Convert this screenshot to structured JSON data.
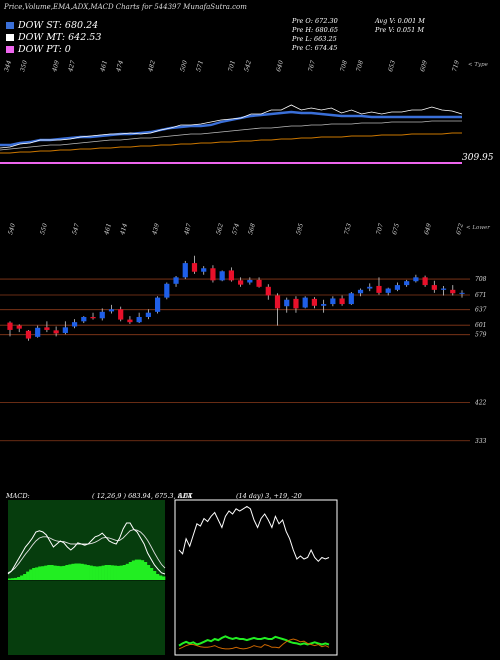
{
  "title": "Price,Volume,EMA,ADX,MACD Charts for 544397 MunafaSutra.com",
  "legend": [
    {
      "label": "DOW ST: 680.24",
      "color": "#3a6fd8"
    },
    {
      "label": "DOW MT: 642.53",
      "color": "#ffffff"
    },
    {
      "label": "DOW PT: 0",
      "color": "#ee66ee"
    }
  ],
  "stats": {
    "prev_open": "Pre   O: 672.30",
    "prev_high": "Pre   H: 680.65",
    "prev_low": "Pre   L: 663.25",
    "prev_close": "Pre   C: 674.45",
    "avg_volume": "Avg V: 0.001 M",
    "prev_volume": "Pre   V: 0.051 M"
  },
  "notes": {
    "top_right_1": "< Type",
    "top_right_2": "< Lower"
  },
  "colors": {
    "up": "#1f5fe8",
    "down": "#e8102a",
    "ema_long": "#cc7700",
    "pt_line": "#ee66ee"
  },
  "chart_data": [
    {
      "type": "line",
      "title": "Volume / EMA panel",
      "top_axis_labels": [
        "344",
        "350",
        "",
        "409",
        "427",
        "",
        "461",
        "474",
        "",
        "482",
        "",
        "500",
        "571",
        "",
        "701",
        "542",
        "",
        "640",
        "",
        "767",
        "",
        "708",
        "708",
        "",
        "653",
        "",
        "609",
        "",
        "719"
      ],
      "right_label": "309.95",
      "series": [
        {
          "values": [
            0.55,
            0.55,
            0.57,
            0.58,
            0.6,
            0.6,
            0.61,
            0.62,
            0.63,
            0.63,
            0.64,
            0.65,
            0.66,
            0.66,
            0.67,
            0.68,
            0.7,
            0.72,
            0.73,
            0.74,
            0.74,
            0.75,
            0.78,
            0.8,
            0.82,
            0.84,
            0.85,
            0.86,
            0.87,
            0.88,
            0.87,
            0.87,
            0.86,
            0.85,
            0.84,
            0.84,
            0.84,
            0.83,
            0.83,
            0.83,
            0.83,
            0.83,
            0.83,
            0.83,
            0.83,
            0.83,
            0.83
          ]
        },
        {
          "values": [
            0.52,
            0.53,
            0.56,
            0.57,
            0.6,
            0.6,
            0.6,
            0.61,
            0.63,
            0.64,
            0.65,
            0.66,
            0.66,
            0.67,
            0.66,
            0.67,
            0.7,
            0.72,
            0.75,
            0.75,
            0.76,
            0.78,
            0.8,
            0.81,
            0.82,
            0.86,
            0.86,
            0.9,
            0.9,
            0.95,
            0.9,
            0.92,
            0.9,
            0.92,
            0.87,
            0.9,
            0.86,
            0.88,
            0.86,
            0.88,
            0.88,
            0.9,
            0.9,
            0.93,
            0.9,
            0.89,
            0.86
          ]
        },
        {
          "values": [
            0.5,
            0.51,
            0.52,
            0.53,
            0.54,
            0.55,
            0.55,
            0.56,
            0.57,
            0.58,
            0.59,
            0.6,
            0.6,
            0.61,
            0.62,
            0.62,
            0.63,
            0.64,
            0.65,
            0.66,
            0.66,
            0.67,
            0.68,
            0.69,
            0.7,
            0.71,
            0.72,
            0.72,
            0.73,
            0.74,
            0.74,
            0.75,
            0.75,
            0.76,
            0.76,
            0.76,
            0.77,
            0.77,
            0.77,
            0.78,
            0.78,
            0.78,
            0.78,
            0.79,
            0.79,
            0.79,
            0.79
          ]
        },
        {
          "values": [
            0.47,
            0.47,
            0.48,
            0.48,
            0.49,
            0.49,
            0.5,
            0.5,
            0.51,
            0.51,
            0.52,
            0.52,
            0.53,
            0.53,
            0.54,
            0.54,
            0.55,
            0.55,
            0.56,
            0.56,
            0.57,
            0.57,
            0.58,
            0.58,
            0.59,
            0.59,
            0.6,
            0.6,
            0.61,
            0.61,
            0.62,
            0.62,
            0.63,
            0.63,
            0.63,
            0.64,
            0.64,
            0.64,
            0.65,
            0.65,
            0.65,
            0.66,
            0.66,
            0.66,
            0.66,
            0.67,
            0.67
          ]
        }
      ]
    },
    {
      "type": "candlestick",
      "title": "Price panel",
      "top_axis_labels": [
        "540",
        "",
        "550",
        "",
        "547",
        "",
        "461",
        "414",
        "",
        "439",
        "",
        "487",
        "",
        "562",
        "574",
        "568",
        "",
        "",
        "595",
        "",
        "",
        "753",
        "",
        "707",
        "675",
        "",
        "649",
        "",
        "672"
      ],
      "right_labels": [
        708,
        671,
        637,
        601,
        579,
        422,
        333
      ],
      "ylim": [
        300,
        780
      ],
      "candles": [
        {
          "o": 607,
          "h": 610,
          "l": 575,
          "c": 590
        },
        {
          "o": 600,
          "h": 603,
          "l": 585,
          "c": 593
        },
        {
          "o": 588,
          "h": 590,
          "l": 565,
          "c": 570
        },
        {
          "o": 574,
          "h": 600,
          "l": 572,
          "c": 595
        },
        {
          "o": 596,
          "h": 610,
          "l": 585,
          "c": 590
        },
        {
          "o": 589,
          "h": 598,
          "l": 575,
          "c": 582
        },
        {
          "o": 583,
          "h": 610,
          "l": 580,
          "c": 596
        },
        {
          "o": 598,
          "h": 615,
          "l": 594,
          "c": 608
        },
        {
          "o": 610,
          "h": 622,
          "l": 606,
          "c": 620
        },
        {
          "o": 620,
          "h": 630,
          "l": 614,
          "c": 617
        },
        {
          "o": 617,
          "h": 640,
          "l": 612,
          "c": 632
        },
        {
          "o": 633,
          "h": 648,
          "l": 628,
          "c": 638
        },
        {
          "o": 638,
          "h": 644,
          "l": 610,
          "c": 614
        },
        {
          "o": 614,
          "h": 622,
          "l": 604,
          "c": 608
        },
        {
          "o": 608,
          "h": 630,
          "l": 606,
          "c": 620
        },
        {
          "o": 620,
          "h": 638,
          "l": 615,
          "c": 630
        },
        {
          "o": 632,
          "h": 668,
          "l": 628,
          "c": 665
        },
        {
          "o": 665,
          "h": 700,
          "l": 661,
          "c": 697
        },
        {
          "o": 697,
          "h": 715,
          "l": 690,
          "c": 712
        },
        {
          "o": 712,
          "h": 750,
          "l": 708,
          "c": 745
        },
        {
          "o": 745,
          "h": 762,
          "l": 720,
          "c": 725
        },
        {
          "o": 725,
          "h": 738,
          "l": 718,
          "c": 733
        },
        {
          "o": 733,
          "h": 740,
          "l": 700,
          "c": 705
        },
        {
          "o": 705,
          "h": 728,
          "l": 703,
          "c": 726
        },
        {
          "o": 728,
          "h": 735,
          "l": 702,
          "c": 705
        },
        {
          "o": 705,
          "h": 712,
          "l": 690,
          "c": 695
        },
        {
          "o": 700,
          "h": 712,
          "l": 695,
          "c": 706
        },
        {
          "o": 706,
          "h": 712,
          "l": 688,
          "c": 690
        },
        {
          "o": 690,
          "h": 696,
          "l": 660,
          "c": 670
        },
        {
          "o": 670,
          "h": 675,
          "l": 600,
          "c": 640
        },
        {
          "o": 645,
          "h": 665,
          "l": 630,
          "c": 660
        },
        {
          "o": 662,
          "h": 668,
          "l": 630,
          "c": 640
        },
        {
          "o": 642,
          "h": 668,
          "l": 640,
          "c": 665
        },
        {
          "o": 662,
          "h": 666,
          "l": 640,
          "c": 646
        },
        {
          "o": 646,
          "h": 660,
          "l": 630,
          "c": 650
        },
        {
          "o": 650,
          "h": 668,
          "l": 645,
          "c": 663
        },
        {
          "o": 663,
          "h": 670,
          "l": 646,
          "c": 650
        },
        {
          "o": 650,
          "h": 678,
          "l": 648,
          "c": 675
        },
        {
          "o": 675,
          "h": 686,
          "l": 668,
          "c": 683
        },
        {
          "o": 686,
          "h": 698,
          "l": 680,
          "c": 690
        },
        {
          "o": 692,
          "h": 712,
          "l": 672,
          "c": 676
        },
        {
          "o": 676,
          "h": 688,
          "l": 670,
          "c": 686
        },
        {
          "o": 683,
          "h": 700,
          "l": 680,
          "c": 694
        },
        {
          "o": 694,
          "h": 706,
          "l": 690,
          "c": 703
        },
        {
          "o": 703,
          "h": 718,
          "l": 700,
          "c": 712
        },
        {
          "o": 712,
          "h": 716,
          "l": 690,
          "c": 694
        },
        {
          "o": 694,
          "h": 704,
          "l": 676,
          "c": 683
        },
        {
          "o": 683,
          "h": 692,
          "l": 670,
          "c": 686
        },
        {
          "o": 683,
          "h": 694,
          "l": 670,
          "c": 675
        },
        {
          "o": 676,
          "h": 682,
          "l": 665,
          "c": 676
        }
      ]
    },
    {
      "type": "area",
      "title": "MACD",
      "label": "MACD:",
      "params": "( 12,26,9 ) 683.94,  675.3,  8.64",
      "histogram": [
        0.05,
        0.06,
        0.07,
        0.1,
        0.15,
        0.2,
        0.28,
        0.35,
        0.4,
        0.42,
        0.45,
        0.46,
        0.48,
        0.5,
        0.5,
        0.48,
        0.47,
        0.46,
        0.47,
        0.5,
        0.52,
        0.54,
        0.55,
        0.55,
        0.54,
        0.52,
        0.5,
        0.48,
        0.46,
        0.45,
        0.46,
        0.48,
        0.5,
        0.5,
        0.49,
        0.48,
        0.47,
        0.48,
        0.5,
        0.54,
        0.6,
        0.65,
        0.68,
        0.68,
        0.66,
        0.6,
        0.5,
        0.4,
        0.3,
        0.2,
        0.15,
        0.12
      ],
      "macd": [
        0.1,
        0.15,
        0.25,
        0.35,
        0.45,
        0.55,
        0.62,
        0.7,
        0.8,
        0.82,
        0.8,
        0.75,
        0.65,
        0.55,
        0.6,
        0.65,
        0.62,
        0.55,
        0.5,
        0.55,
        0.62,
        0.6,
        0.58,
        0.6,
        0.66,
        0.72,
        0.74,
        0.78,
        0.72,
        0.65,
        0.62,
        0.6,
        0.7,
        0.85,
        0.95,
        0.95,
        0.85,
        0.8,
        0.7,
        0.6,
        0.45,
        0.35,
        0.25,
        0.18,
        0.12,
        0.1
      ],
      "signal": [
        0.12,
        0.15,
        0.2,
        0.27,
        0.35,
        0.43,
        0.5,
        0.58,
        0.65,
        0.7,
        0.72,
        0.72,
        0.7,
        0.67,
        0.65,
        0.64,
        0.64,
        0.62,
        0.6,
        0.6,
        0.6,
        0.6,
        0.6,
        0.6,
        0.61,
        0.63,
        0.66,
        0.7,
        0.71,
        0.7,
        0.68,
        0.66,
        0.66,
        0.7,
        0.76,
        0.82,
        0.84,
        0.83,
        0.8,
        0.74,
        0.66,
        0.56,
        0.45,
        0.35,
        0.26,
        0.2
      ]
    },
    {
      "type": "line",
      "title": "ADX",
      "label": "ADX",
      "params": "(14 day) 3, +19, -20",
      "adx": [
        0.4,
        0.35,
        0.55,
        0.45,
        0.6,
        0.75,
        0.72,
        0.82,
        0.78,
        0.85,
        0.9,
        0.8,
        0.7,
        0.85,
        0.92,
        0.88,
        0.95,
        0.92,
        0.95,
        0.98,
        0.95,
        0.8,
        0.7,
        0.82,
        0.88,
        0.8,
        0.7,
        0.85,
        0.75,
        0.8,
        0.65,
        0.55,
        0.4,
        0.28,
        0.32,
        0.28,
        0.3,
        0.4,
        0.3,
        0.25,
        0.3,
        0.28,
        0.3
      ],
      "plus_di": [
        0.08,
        0.12,
        0.15,
        0.12,
        0.14,
        0.1,
        0.12,
        0.15,
        0.18,
        0.16,
        0.2,
        0.18,
        0.22,
        0.25,
        0.22,
        0.2,
        0.22,
        0.2,
        0.2,
        0.18,
        0.2,
        0.22,
        0.2,
        0.2,
        0.22,
        0.2,
        0.2,
        0.24,
        0.22,
        0.2,
        0.18,
        0.15,
        0.13,
        0.12,
        0.1,
        0.12,
        0.1,
        0.12,
        0.14,
        0.12,
        0.1,
        0.12,
        0.1
      ],
      "minus_di": [
        0.02,
        0.05,
        0.08,
        0.1,
        0.1,
        0.08,
        0.06,
        0.05,
        0.05,
        0.06,
        0.08,
        0.05,
        0.03,
        0.02,
        0.02,
        0.03,
        0.05,
        0.03,
        0.02,
        0.03,
        0.05,
        0.08,
        0.06,
        0.05,
        0.1,
        0.08,
        0.05,
        0.05,
        0.04,
        0.1,
        0.15,
        0.18,
        0.2,
        0.18,
        0.15,
        0.16,
        0.12,
        0.1,
        0.08,
        0.1,
        0.06,
        0.08,
        0.05
      ]
    }
  ]
}
